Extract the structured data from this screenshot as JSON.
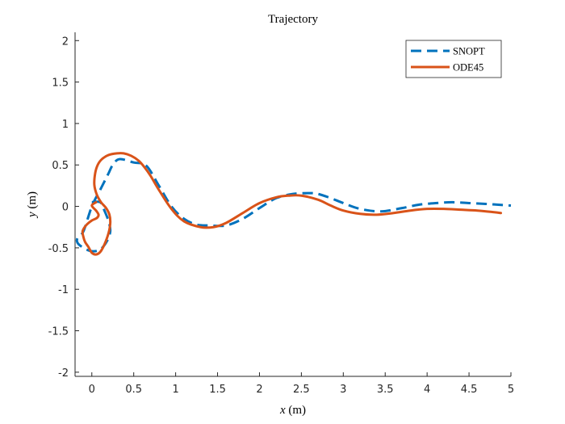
{
  "chart_data": {
    "type": "line",
    "title": "Trajectory",
    "xlabel": "x (m)",
    "ylabel": "y (m)",
    "xlabel_var": "x",
    "xlabel_unit": " (m)",
    "ylabel_var": "y",
    "ylabel_unit": " (m)",
    "xlim": [
      -0.2,
      5
    ],
    "ylim": [
      -2.05,
      2.1
    ],
    "xticks": [
      0,
      0.5,
      1,
      1.5,
      2,
      2.5,
      3,
      3.5,
      4,
      4.5,
      5
    ],
    "xtick_labels": [
      "0",
      "0.5",
      "1",
      "1.5",
      "2",
      "2.5",
      "3",
      "3.5",
      "4",
      "4.5",
      "5"
    ],
    "yticks": [
      -2,
      -1.5,
      -1,
      -0.5,
      0,
      0.5,
      1,
      1.5,
      2
    ],
    "ytick_labels": [
      "-2",
      "-1.5",
      "-1",
      "-0.5",
      "0",
      "0.5",
      "1",
      "1.5",
      "2"
    ],
    "grid": false,
    "legend_position": "top-right",
    "series": [
      {
        "name": "SNOPT",
        "color": "#0072BD",
        "style": "dashed",
        "x": [
          0.0,
          0.1,
          0.15,
          0.2,
          0.22,
          0.18,
          0.1,
          0.0,
          -0.1,
          -0.17,
          -0.17,
          -0.1,
          0.0,
          0.1,
          0.15,
          0.2,
          0.25,
          0.33,
          0.5,
          0.65,
          0.8,
          0.95,
          1.1,
          1.25,
          1.4,
          1.6,
          1.8,
          2.0,
          2.2,
          2.4,
          2.6,
          2.7,
          2.85,
          3.0,
          3.2,
          3.45,
          3.7,
          3.9,
          4.1,
          4.3,
          4.5,
          4.7,
          4.85,
          5.0
        ],
        "y": [
          0.05,
          0.05,
          -0.05,
          -0.18,
          -0.3,
          -0.42,
          -0.52,
          -0.54,
          -0.5,
          -0.44,
          -0.38,
          -0.3,
          0.0,
          0.2,
          0.3,
          0.4,
          0.5,
          0.57,
          0.53,
          0.49,
          0.25,
          0.0,
          -0.15,
          -0.22,
          -0.23,
          -0.23,
          -0.15,
          -0.02,
          0.1,
          0.15,
          0.16,
          0.15,
          0.1,
          0.04,
          -0.03,
          -0.06,
          -0.02,
          0.02,
          0.04,
          0.05,
          0.04,
          0.03,
          0.02,
          0.01
        ]
      },
      {
        "name": "ODE45",
        "color": "#D95319",
        "style": "solid",
        "x": [
          0.05,
          0.0,
          0.05,
          0.08,
          0.06,
          0.0,
          -0.07,
          -0.11,
          -0.1,
          -0.08,
          -0.04,
          0.0,
          0.05,
          0.1,
          0.15,
          0.2,
          0.22,
          0.21,
          0.17,
          0.11,
          0.06,
          0.03,
          0.04,
          0.07,
          0.12,
          0.2,
          0.3,
          0.38,
          0.47,
          0.56,
          0.63,
          0.7,
          0.8,
          0.95,
          1.1,
          1.3,
          1.45,
          1.6,
          1.8,
          2.0,
          2.2,
          2.35,
          2.5,
          2.7,
          2.85,
          3.0,
          3.2,
          3.4,
          3.6,
          3.8,
          4.0,
          4.2,
          4.4,
          4.6,
          4.8,
          4.88
        ],
        "y": [
          0.05,
          0.01,
          -0.05,
          -0.1,
          -0.14,
          -0.17,
          -0.23,
          -0.3,
          -0.37,
          -0.43,
          -0.49,
          -0.56,
          -0.58,
          -0.55,
          -0.46,
          -0.32,
          -0.2,
          -0.1,
          -0.02,
          0.05,
          0.14,
          0.26,
          0.4,
          0.5,
          0.57,
          0.62,
          0.64,
          0.64,
          0.61,
          0.55,
          0.47,
          0.37,
          0.2,
          -0.03,
          -0.18,
          -0.25,
          -0.25,
          -0.2,
          -0.08,
          0.04,
          0.11,
          0.13,
          0.13,
          0.08,
          0.01,
          -0.05,
          -0.09,
          -0.1,
          -0.08,
          -0.05,
          -0.03,
          -0.03,
          -0.04,
          -0.05,
          -0.07,
          -0.08
        ]
      }
    ]
  }
}
